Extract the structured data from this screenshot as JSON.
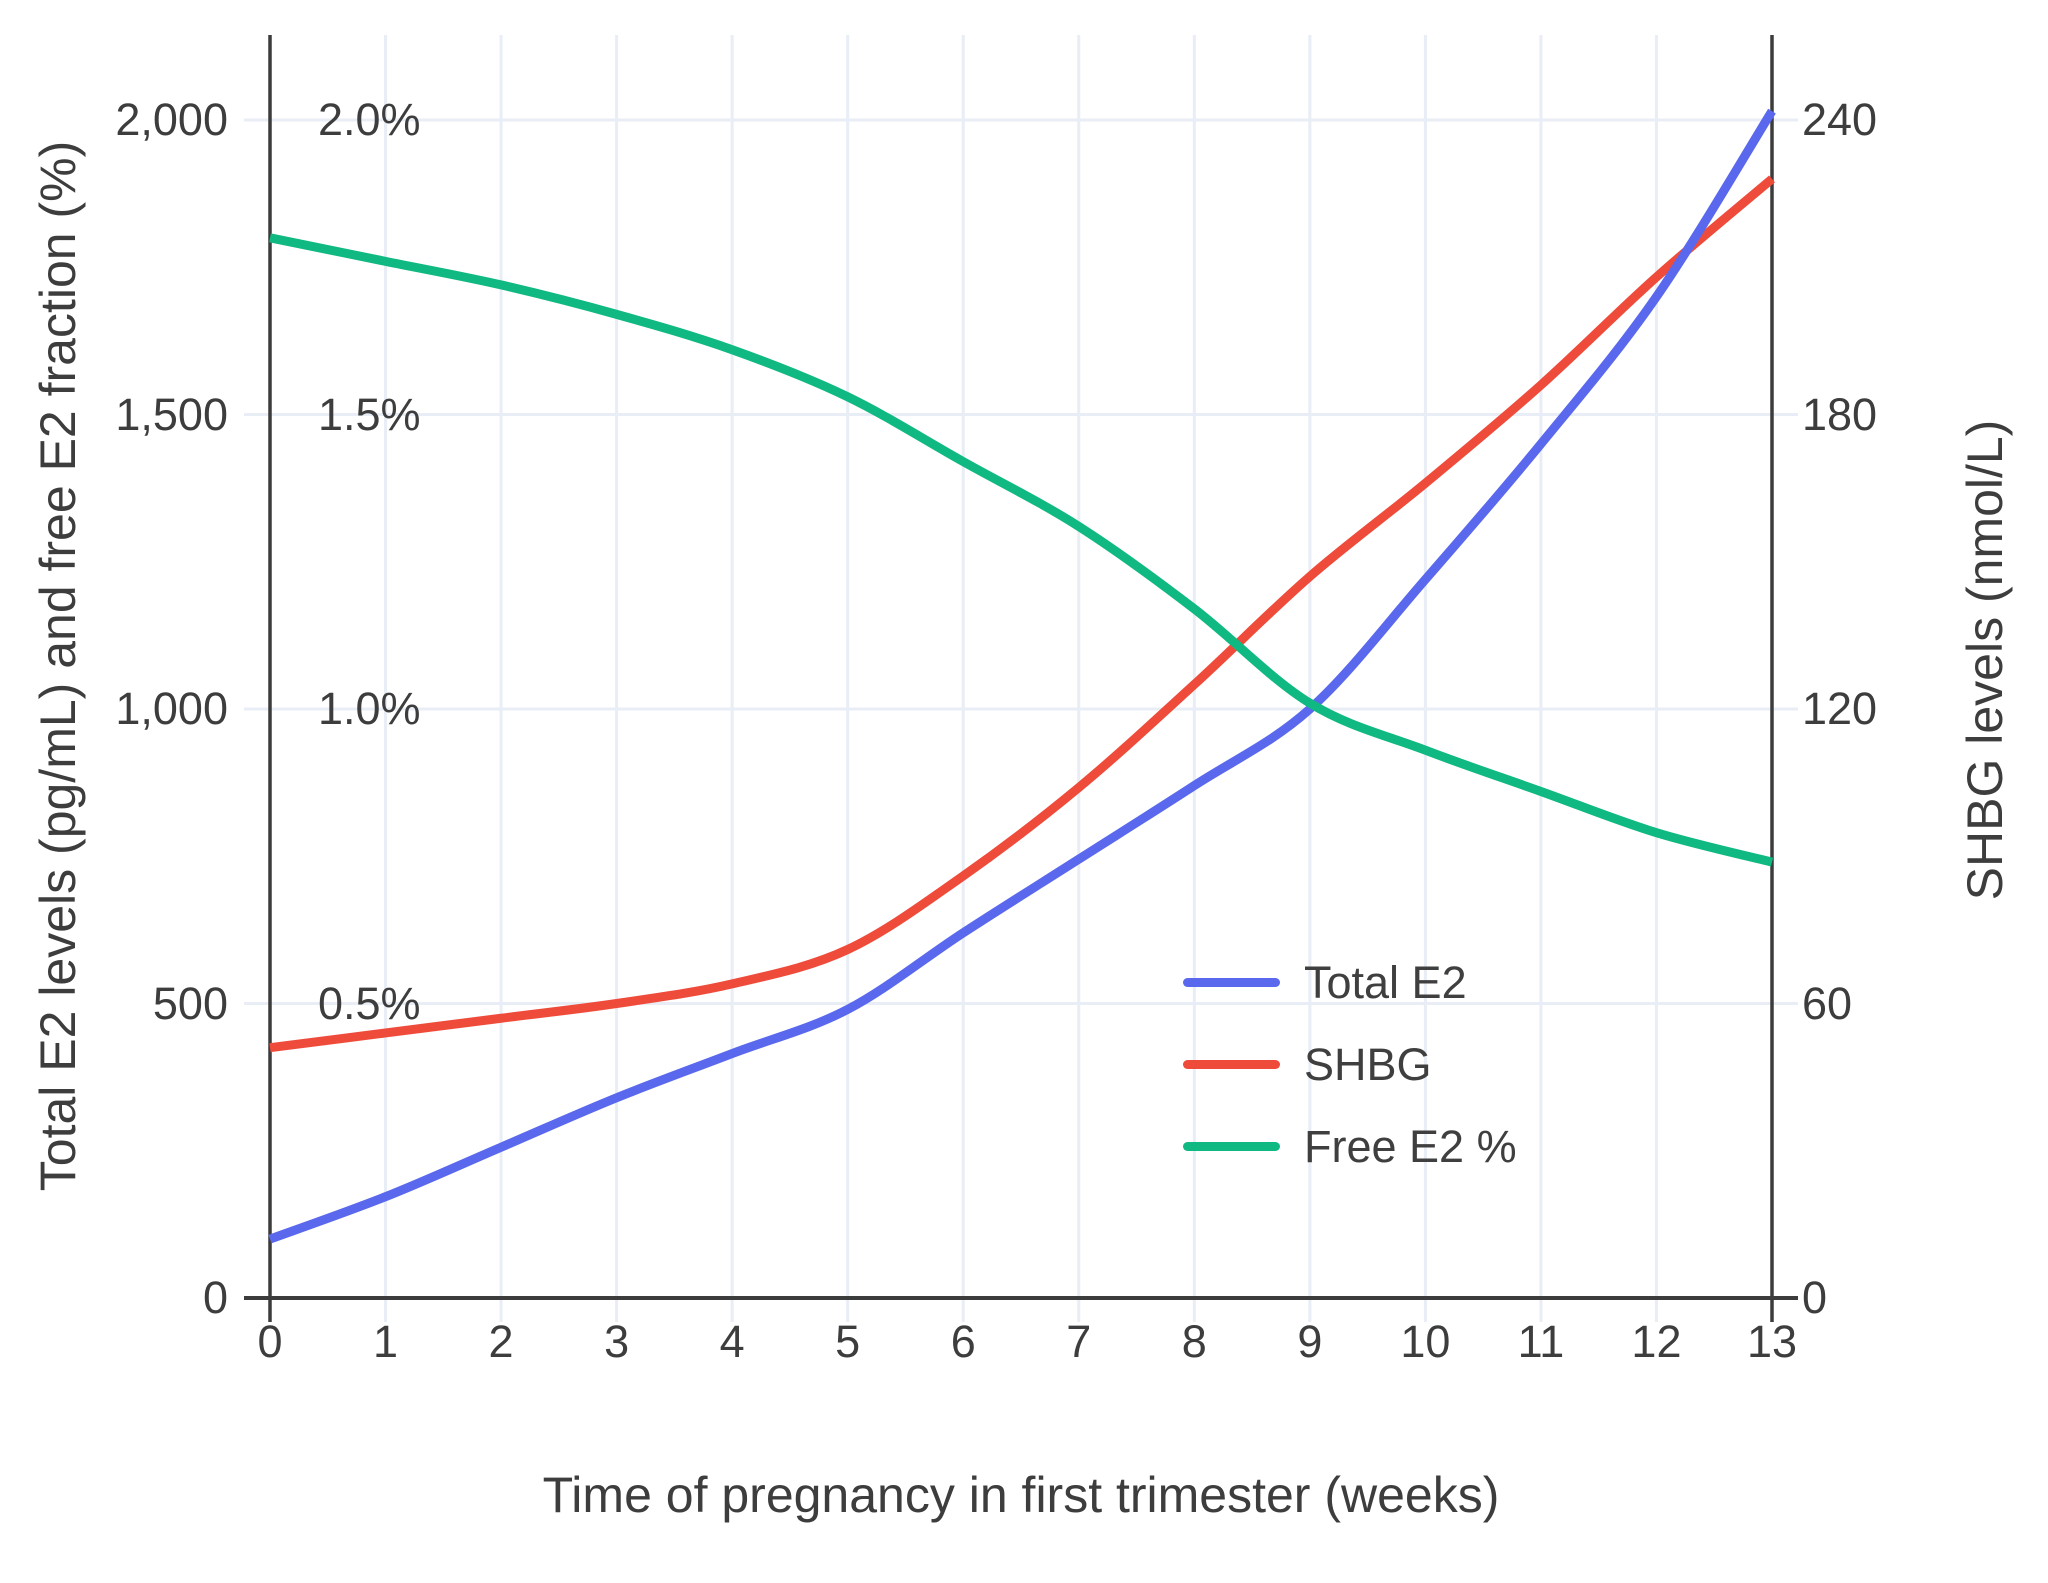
{
  "chart_data": {
    "type": "line",
    "title": "",
    "xlabel": "Time of pregnancy in first trimester (weeks)",
    "ylabel_left": "Total E2 levels (pg/mL) and free E2 fraction (%)",
    "ylabel_right": "SHBG levels (nmol/L)",
    "x": [
      0,
      1,
      2,
      3,
      4,
      5,
      6,
      7,
      8,
      9,
      10,
      11,
      12,
      13
    ],
    "x_tick_labels": [
      "0",
      "1",
      "2",
      "3",
      "4",
      "5",
      "6",
      "7",
      "8",
      "9",
      "10",
      "11",
      "12",
      "13"
    ],
    "left_axis": {
      "range": [
        0,
        2145
      ],
      "ticks": [
        {
          "value": 0,
          "label": "0"
        },
        {
          "value": 500,
          "label": "500"
        },
        {
          "value": 1000,
          "label": "1,000"
        },
        {
          "value": 1500,
          "label": "1,500"
        },
        {
          "value": 2000,
          "label": "2,000"
        }
      ]
    },
    "percent_labels": [
      {
        "value": 500,
        "label": "0.5%"
      },
      {
        "value": 1000,
        "label": "1.0%"
      },
      {
        "value": 1500,
        "label": "1.5%"
      },
      {
        "value": 2000,
        "label": "2.0%"
      }
    ],
    "right_axis": {
      "range": [
        0,
        257
      ],
      "ticks": [
        {
          "value": 0,
          "label": "0"
        },
        {
          "value": 60,
          "label": "60"
        },
        {
          "value": 120,
          "label": "120"
        },
        {
          "value": 180,
          "label": "180"
        },
        {
          "value": 240,
          "label": "240"
        }
      ]
    },
    "series": [
      {
        "name": "Total E2",
        "axis": "left",
        "unit": "pg/mL",
        "color": "#5A68ED",
        "values": [
          100,
          172,
          256,
          340,
          415,
          490,
          620,
          745,
          870,
          1000,
          1220,
          1450,
          1700,
          2015
        ]
      },
      {
        "name": "SHBG",
        "axis": "right",
        "unit": "nmol/L",
        "color": "#EF4B3B",
        "values": [
          51,
          54,
          57,
          60,
          64,
          71,
          86,
          104,
          125,
          147,
          166,
          186,
          208,
          228
        ]
      },
      {
        "name": "Free E2 %",
        "axis": "percent",
        "unit": "%",
        "color": "#10B981",
        "values": [
          1.8,
          1.76,
          1.72,
          1.67,
          1.61,
          1.53,
          1.42,
          1.31,
          1.17,
          1.01,
          0.93,
          0.86,
          0.79,
          0.74
        ]
      }
    ],
    "legend_position": "inside-lower-right",
    "grid": true,
    "colors": {
      "grid": "#E8EDF6",
      "axis": "#3C3C3C",
      "text": "#3D3D3D",
      "background": "#FFFFFF"
    }
  }
}
